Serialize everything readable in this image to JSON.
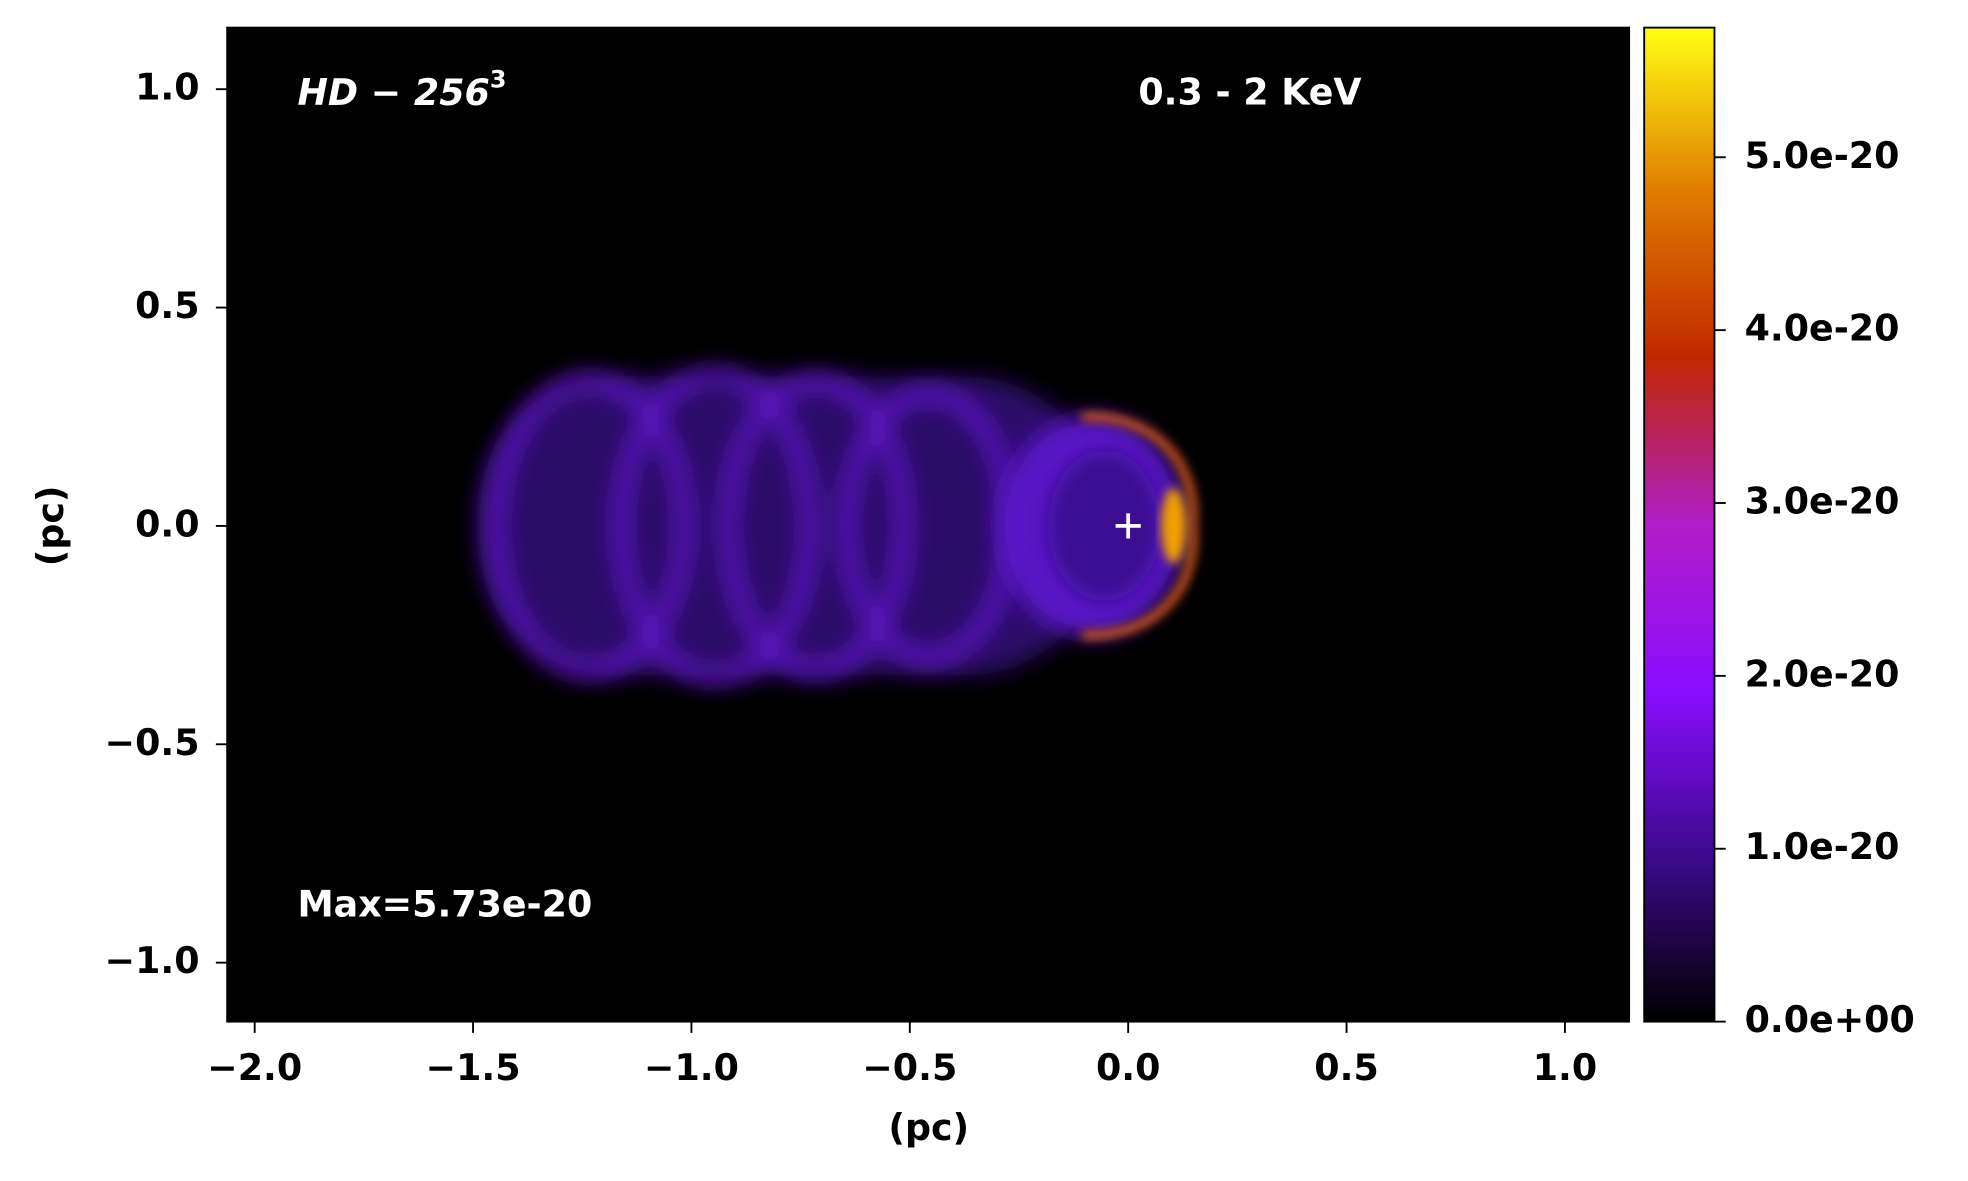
{
  "chart_data": {
    "type": "heatmap",
    "xlabel": "(pc)",
    "ylabel": "(pc)",
    "xlim": [
      -2.063,
      1.147
    ],
    "ylim": [
      -1.135,
      1.141
    ],
    "xticks": [
      {
        "value": -2,
        "label": "−2.0"
      },
      {
        "value": -1.5,
        "label": "−1.5"
      },
      {
        "value": -1,
        "label": "−1.0"
      },
      {
        "value": -0.5,
        "label": "−0.5"
      },
      {
        "value": 0,
        "label": "0.0"
      },
      {
        "value": 0.5,
        "label": "0.5"
      },
      {
        "value": 1,
        "label": "1.0"
      }
    ],
    "yticks": [
      {
        "value": -1,
        "label": "−1.0"
      },
      {
        "value": -0.5,
        "label": "−0.5"
      },
      {
        "value": 0,
        "label": "0.0"
      },
      {
        "value": 0.5,
        "label": "0.5"
      },
      {
        "value": 1,
        "label": "1.0"
      }
    ],
    "colorbar": {
      "clim": [
        0,
        5.75e-20
      ],
      "ticks": [
        {
          "value": 0,
          "label": "0.0e+00"
        },
        {
          "value": 1e-20,
          "label": "1.0e-20"
        },
        {
          "value": 2e-20,
          "label": "2.0e-20"
        },
        {
          "value": 3e-20,
          "label": "3.0e-20"
        },
        {
          "value": 4e-20,
          "label": "4.0e-20"
        },
        {
          "value": 5e-20,
          "label": "5.0e-20"
        }
      ],
      "colormap": [
        "#000000",
        "#3c0a8c",
        "#8a0cff",
        "#b01ec8",
        "#c02800",
        "#e07a00",
        "#ffff14"
      ]
    },
    "marker": {
      "x": 0,
      "y": 0
    },
    "annotations": {
      "label": {
        "text": "HD − 256",
        "superscript": "3"
      },
      "band": "0.3 - 2 KeV",
      "max": "Max=5.73e-20"
    }
  }
}
